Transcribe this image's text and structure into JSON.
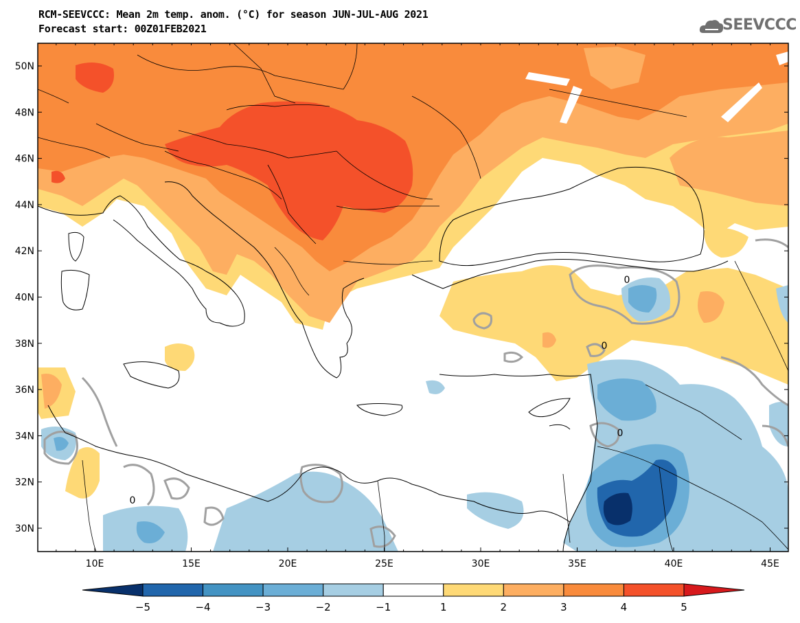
{
  "title": {
    "line1": "RCM-SEEVCCC: Mean 2m temp. anom. (°C) for season JUN-JUL-AUG 2021",
    "line2": "Forecast start: 00Z01FEB2021"
  },
  "logo": {
    "text": "SEEVCCC",
    "icon": "cloud-icon"
  },
  "map": {
    "lon_ticks": [
      "10E",
      "15E",
      "20E",
      "25E",
      "30E",
      "35E",
      "40E",
      "45E"
    ],
    "lat_ticks": [
      "50N",
      "48N",
      "46N",
      "44N",
      "42N",
      "40N",
      "38N",
      "36N",
      "34N",
      "32N",
      "30N"
    ],
    "contour_label": "0"
  },
  "colorbar": {
    "labels": [
      "-5",
      "-4",
      "-3",
      "-2",
      "-1",
      "1",
      "2",
      "3",
      "4",
      "5"
    ],
    "colors": [
      "#08306b",
      "#2166ac",
      "#4393c3",
      "#6baed6",
      "#a6cee3",
      "#ffffff",
      "#fed976",
      "#fdae61",
      "#f98b3c",
      "#f4512a",
      "#d7191c"
    ]
  },
  "colors": {
    "anom_lt_m4": "#08306b",
    "anom_m4_m3": "#2166ac",
    "anom_m3_m2": "#4393c3",
    "anom_m2_m1": "#a6cee3",
    "anom_1_2": "#fed976",
    "anom_2_3": "#fdae61",
    "anom_3_4": "#f98b3c",
    "anom_4_5": "#f4512a",
    "contour": "#a0a0a0"
  }
}
